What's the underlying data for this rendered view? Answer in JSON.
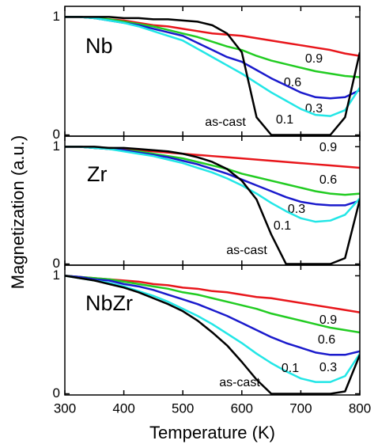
{
  "chart_data": [
    {
      "type": "line",
      "panel_label": "Nb",
      "x": [
        300,
        325,
        350,
        375,
        400,
        425,
        450,
        475,
        500,
        525,
        550,
        575,
        600,
        625,
        650,
        675,
        700,
        725,
        750,
        775,
        800
      ],
      "xlim": [
        300,
        800
      ],
      "ylim": [
        -0.01,
        1.09
      ],
      "yticks": [
        0,
        1
      ],
      "series": [
        {
          "name": "0.9",
          "color": "#e8161b",
          "values": [
            1,
            1.0,
            0.99,
            0.98,
            0.97,
            0.95,
            0.93,
            0.92,
            0.9,
            0.88,
            0.86,
            0.85,
            0.84,
            0.82,
            0.8,
            0.78,
            0.76,
            0.74,
            0.72,
            0.69,
            0.67
          ]
        },
        {
          "name": "0.6",
          "color": "#22cc22",
          "values": [
            1,
            1.0,
            0.99,
            0.98,
            0.96,
            0.94,
            0.92,
            0.89,
            0.86,
            0.83,
            0.79,
            0.75,
            0.72,
            0.67,
            0.63,
            0.6,
            0.57,
            0.54,
            0.52,
            0.5,
            0.49
          ]
        },
        {
          "name": "0.3",
          "color": "#1a1acc",
          "values": [
            1,
            1.0,
            0.99,
            0.97,
            0.95,
            0.93,
            0.9,
            0.87,
            0.84,
            0.78,
            0.72,
            0.66,
            0.62,
            0.55,
            0.48,
            0.42,
            0.36,
            0.32,
            0.31,
            0.32,
            0.38
          ]
        },
        {
          "name": "0.1",
          "color": "#22e6e6",
          "values": [
            1,
            1.0,
            0.99,
            0.97,
            0.95,
            0.92,
            0.88,
            0.84,
            0.8,
            0.73,
            0.66,
            0.59,
            0.52,
            0.44,
            0.36,
            0.29,
            0.22,
            0.17,
            0.16,
            0.21,
            0.4
          ]
        },
        {
          "name": "as-cast",
          "color": "#000000",
          "values": [
            1,
            1.0,
            1.0,
            1.0,
            0.99,
            0.99,
            0.98,
            0.98,
            0.97,
            0.96,
            0.93,
            0.86,
            0.7,
            0.15,
            0,
            0,
            0,
            0,
            0,
            0.15,
            0.7
          ]
        }
      ]
    },
    {
      "type": "line",
      "panel_label": "Zr",
      "ylabel": "Magnetization (a.u.)",
      "x": [
        300,
        325,
        350,
        375,
        400,
        425,
        450,
        475,
        500,
        525,
        550,
        575,
        600,
        625,
        650,
        675,
        700,
        725,
        750,
        775,
        800
      ],
      "xlim": [
        300,
        800
      ],
      "ylim": [
        -0.01,
        1.09
      ],
      "yticks": [
        0,
        1
      ],
      "series": [
        {
          "name": "0.9",
          "color": "#e8161b",
          "values": [
            1,
            1.0,
            0.99,
            0.99,
            0.98,
            0.97,
            0.96,
            0.95,
            0.94,
            0.93,
            0.92,
            0.91,
            0.9,
            0.89,
            0.88,
            0.87,
            0.86,
            0.85,
            0.84,
            0.83,
            0.82
          ]
        },
        {
          "name": "0.6",
          "color": "#22cc22",
          "values": [
            1,
            1.0,
            0.99,
            0.98,
            0.97,
            0.96,
            0.94,
            0.92,
            0.9,
            0.87,
            0.84,
            0.81,
            0.77,
            0.74,
            0.71,
            0.68,
            0.65,
            0.62,
            0.6,
            0.59,
            0.6
          ]
        },
        {
          "name": "0.3",
          "color": "#1a1acc",
          "values": [
            1,
            1.0,
            0.99,
            0.98,
            0.97,
            0.95,
            0.93,
            0.91,
            0.88,
            0.85,
            0.81,
            0.77,
            0.72,
            0.67,
            0.62,
            0.57,
            0.53,
            0.51,
            0.5,
            0.5,
            0.54
          ]
        },
        {
          "name": "0.1",
          "color": "#22e6e6",
          "values": [
            1,
            1.0,
            0.99,
            0.98,
            0.96,
            0.94,
            0.92,
            0.89,
            0.86,
            0.82,
            0.78,
            0.73,
            0.67,
            0.6,
            0.52,
            0.45,
            0.39,
            0.36,
            0.37,
            0.42,
            0.56
          ]
        },
        {
          "name": "as-cast",
          "color": "#000000",
          "values": [
            1,
            1.0,
            1.0,
            0.99,
            0.99,
            0.98,
            0.97,
            0.96,
            0.94,
            0.91,
            0.87,
            0.81,
            0.71,
            0.55,
            0.25,
            0,
            0,
            0,
            0,
            0.05,
            0.55
          ]
        }
      ]
    },
    {
      "type": "line",
      "panel_label": "NbZr",
      "xlabel": "Temperature (K)",
      "x": [
        300,
        325,
        350,
        375,
        400,
        425,
        450,
        475,
        500,
        525,
        550,
        575,
        600,
        625,
        650,
        675,
        700,
        725,
        750,
        775,
        800
      ],
      "xlim": [
        300,
        800
      ],
      "xticks": [
        300,
        400,
        500,
        600,
        700,
        800
      ],
      "ylim": [
        -0.01,
        1.09
      ],
      "yticks": [
        0,
        1
      ],
      "series": [
        {
          "name": "0.9",
          "color": "#e8161b",
          "values": [
            1,
            0.99,
            0.98,
            0.97,
            0.96,
            0.95,
            0.93,
            0.92,
            0.9,
            0.89,
            0.87,
            0.86,
            0.84,
            0.82,
            0.81,
            0.79,
            0.77,
            0.75,
            0.73,
            0.71,
            0.69
          ]
        },
        {
          "name": "0.6",
          "color": "#22cc22",
          "values": [
            1,
            0.99,
            0.98,
            0.97,
            0.95,
            0.93,
            0.91,
            0.89,
            0.86,
            0.84,
            0.81,
            0.78,
            0.75,
            0.72,
            0.68,
            0.65,
            0.62,
            0.59,
            0.56,
            0.54,
            0.52
          ]
        },
        {
          "name": "0.3",
          "color": "#1a1acc",
          "values": [
            1,
            0.99,
            0.97,
            0.96,
            0.93,
            0.91,
            0.88,
            0.84,
            0.8,
            0.76,
            0.71,
            0.66,
            0.6,
            0.54,
            0.48,
            0.43,
            0.39,
            0.35,
            0.33,
            0.33,
            0.36
          ]
        },
        {
          "name": "0.1",
          "color": "#22e6e6",
          "values": [
            1,
            0.98,
            0.96,
            0.94,
            0.91,
            0.87,
            0.83,
            0.78,
            0.72,
            0.66,
            0.59,
            0.51,
            0.43,
            0.34,
            0.26,
            0.19,
            0.13,
            0.1,
            0.1,
            0.15,
            0.34
          ]
        },
        {
          "name": "as-cast",
          "color": "#000000",
          "values": [
            1,
            0.98,
            0.96,
            0.93,
            0.9,
            0.86,
            0.81,
            0.76,
            0.7,
            0.62,
            0.52,
            0.41,
            0.27,
            0.12,
            0,
            0,
            0,
            0,
            0,
            0.02,
            0.33
          ]
        }
      ]
    }
  ]
}
